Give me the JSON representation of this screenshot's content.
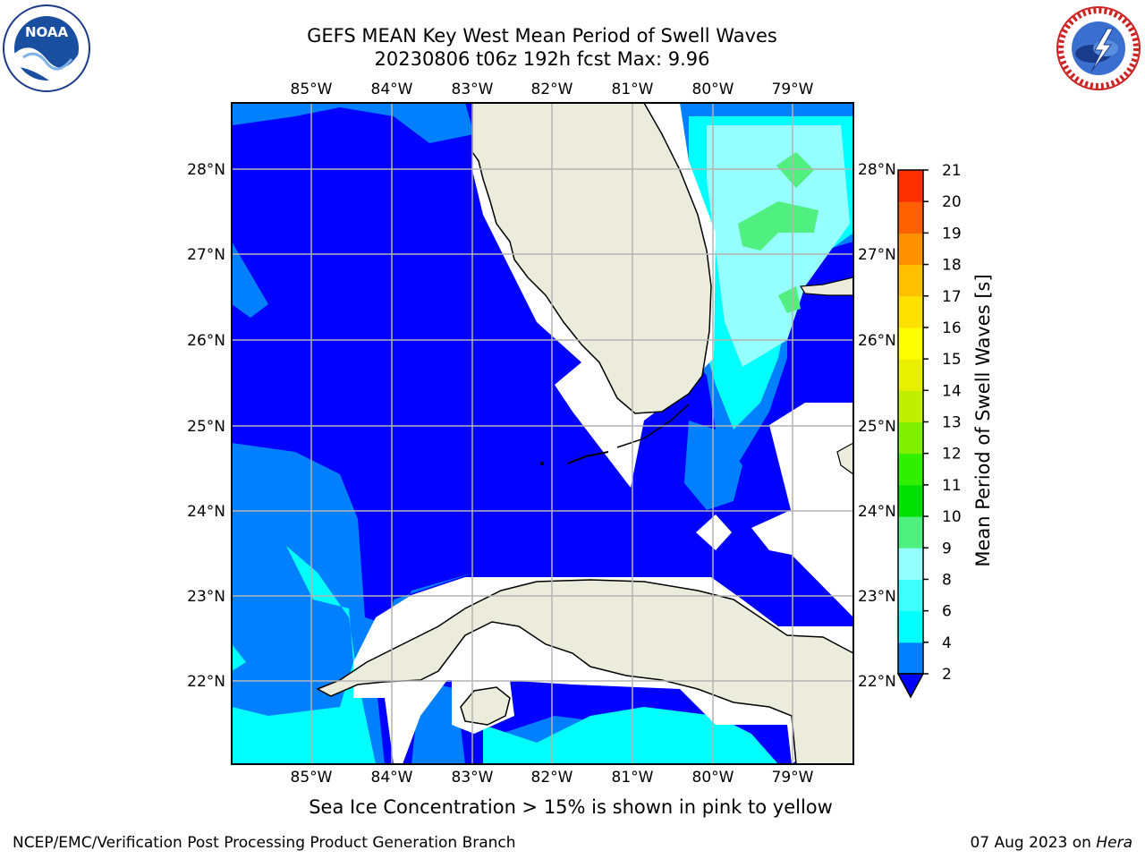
{
  "title": {
    "line1": "GEFS MEAN Key West Mean Period of Swell Waves",
    "line2": "20230806 t06z 192h fcst   Max: 9.96"
  },
  "map": {
    "lon_labels": [
      "85°W",
      "84°W",
      "83°W",
      "82°W",
      "81°W",
      "80°W",
      "79°W"
    ],
    "lat_labels": [
      "28°N",
      "27°N",
      "26°N",
      "25°N",
      "24°N",
      "23°N",
      "22°N"
    ],
    "land_color": "#ececdc",
    "ocean_fill_colors": [
      "#0000ff",
      "#0080ff",
      "#00ffff",
      "#96ffff",
      "#50f080"
    ]
  },
  "colorbar": {
    "label": "Mean Period of Swell Waves [s]",
    "ticks": [
      "2",
      "4",
      "6",
      "8",
      "9",
      "10",
      "11",
      "12",
      "13",
      "14",
      "15",
      "16",
      "17",
      "18",
      "19",
      "20",
      "21"
    ],
    "colors": [
      "#0000ff",
      "#0080ff",
      "#00ffff",
      "#40ffff",
      "#96ffff",
      "#50f080",
      "#00e000",
      "#30f000",
      "#80f000",
      "#c0f000",
      "#e8f000",
      "#ffff00",
      "#ffe000",
      "#ffc000",
      "#ff9000",
      "#ff6000",
      "#ff3000",
      "#ff0000"
    ]
  },
  "note": "Sea Ice Concentration > 15% is shown in pink to yellow",
  "footer": {
    "left": "NCEP/EMC/Verification Post Processing Product Generation Branch",
    "right_date": "07 Aug 2023 on ",
    "right_host": "Hera"
  },
  "logos": {
    "noaa": "NOAA",
    "nws": "NATIONAL WEATHER SERVICE"
  }
}
